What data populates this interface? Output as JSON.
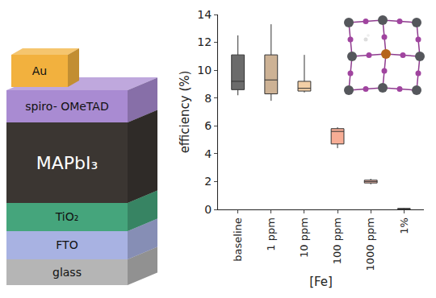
{
  "chart_data": {
    "type": "box",
    "y_label": "efficiency (%)",
    "x_label": "[Fe]",
    "categories": [
      "baseline",
      "1 ppm",
      "10 ppm",
      "100 ppm",
      "1000 ppm",
      "1%"
    ],
    "min": [
      8.2,
      7.8,
      8.4,
      4.4,
      1.8,
      0.02
    ],
    "q1": [
      8.6,
      8.3,
      8.5,
      4.7,
      1.9,
      0.04
    ],
    "median": [
      9.2,
      9.3,
      8.7,
      5.6,
      2.0,
      0.05
    ],
    "q3": [
      11.1,
      11.1,
      9.2,
      5.8,
      2.1,
      0.06
    ],
    "max": [
      12.5,
      13.3,
      11.1,
      5.9,
      2.2,
      0.08
    ],
    "colors": [
      "#6b6b6b",
      "#cdb295",
      "#f3cfa6",
      "#f7ad95",
      "#f9c2b4",
      "#fde3de"
    ],
    "ylim": [
      0,
      14
    ],
    "yticks": [
      0,
      2,
      4,
      6,
      8,
      10,
      12,
      14
    ],
    "grid": false
  },
  "device_stack": {
    "layers": [
      {
        "label": "Au",
        "color": "#f2b13e"
      },
      {
        "label": "spiro- OMeTAD",
        "color": "#a98bd2"
      },
      {
        "label": "MAPbI₃",
        "color": "#3b3632"
      },
      {
        "label": "TiO₂",
        "color": "#45a57c"
      },
      {
        "label": "FTO",
        "color": "#a8b2e2"
      },
      {
        "label": "glass",
        "color": "#b5b5b5"
      }
    ]
  }
}
